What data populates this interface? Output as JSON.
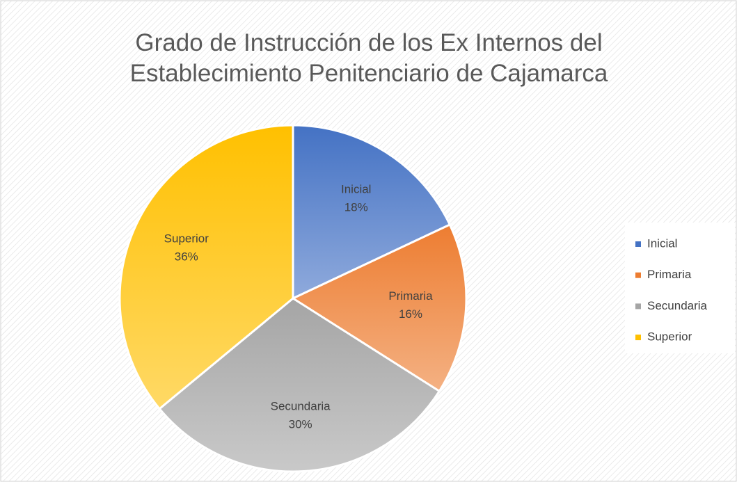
{
  "chart_data": {
    "type": "pie",
    "title": "Grado de Instrucción de los Ex Internos del Establecimiento Penitenciario de Cajamarca",
    "categories": [
      "Inicial",
      "Primaria",
      "Secundaria",
      "Superior"
    ],
    "values": [
      18,
      16,
      30,
      36
    ],
    "value_labels": [
      "18%",
      "16%",
      "30%",
      "36%"
    ],
    "colors": [
      "#4472c4",
      "#ed7d31",
      "#a5a5a5",
      "#ffc000"
    ],
    "legend": "right"
  }
}
